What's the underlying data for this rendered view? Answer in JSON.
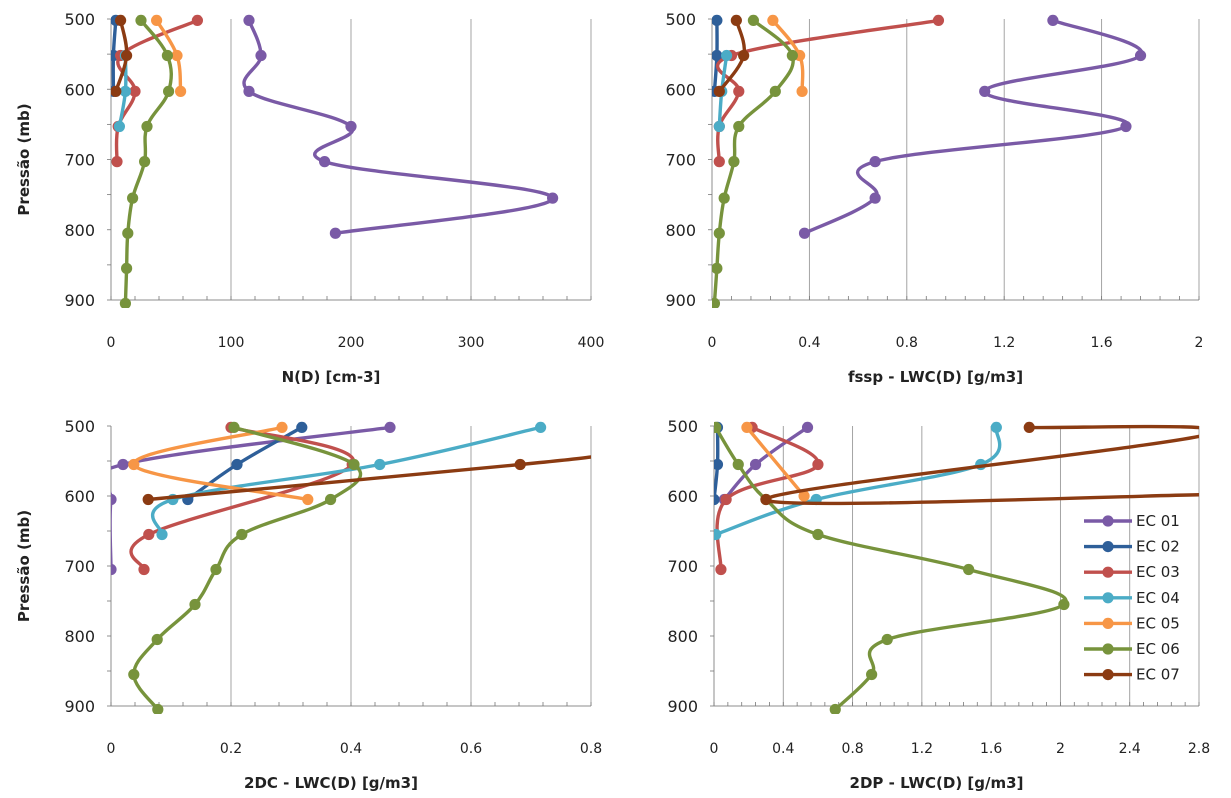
{
  "chart_data": [
    {
      "type": "line",
      "panel": "top-left",
      "xlabel": "N(D) [cm-3]",
      "ylabel": "Pressão (mb)",
      "xlim": [
        0,
        400
      ],
      "ylim": [
        900,
        500
      ],
      "y_inverted": true,
      "xticks": [
        0,
        100,
        200,
        300,
        400
      ],
      "xtick_labels": [
        "0",
        "100",
        "200",
        "300",
        "400"
      ],
      "yticks": [
        500,
        600,
        700,
        800,
        900
      ],
      "grid": "vertical",
      "series": [
        {
          "name": "EC 01",
          "color": "#7a5aa6",
          "points": [
            [
              115,
              502
            ],
            [
              125,
              552
            ],
            [
              115,
              603
            ],
            [
              200,
              653
            ],
            [
              178,
              703
            ],
            [
              368,
              755
            ],
            [
              187,
              805
            ]
          ]
        },
        {
          "name": "EC 02",
          "color": "#2e5f99",
          "points": [
            [
              4,
              502
            ],
            [
              2,
              552
            ],
            [
              2,
              603
            ]
          ]
        },
        {
          "name": "EC 03",
          "color": "#c0504d",
          "points": [
            [
              72,
              502
            ],
            [
              8,
              552
            ],
            [
              20,
              603
            ],
            [
              6,
              653
            ],
            [
              5,
              703
            ]
          ]
        },
        {
          "name": "EC 04",
          "color": "#4bacc6",
          "points": [
            [
              12,
              552
            ],
            [
              12,
              603
            ],
            [
              7,
              653
            ]
          ]
        },
        {
          "name": "EC 05",
          "color": "#f79646",
          "points": [
            [
              38,
              502
            ],
            [
              55,
              552
            ],
            [
              58,
              603
            ]
          ]
        },
        {
          "name": "EC 06",
          "color": "#77933c",
          "points": [
            [
              25,
              502
            ],
            [
              47,
              552
            ],
            [
              48,
              603
            ],
            [
              30,
              653
            ],
            [
              28,
              703
            ],
            [
              18,
              755
            ],
            [
              14,
              805
            ],
            [
              13,
              855
            ],
            [
              12,
              905
            ]
          ]
        },
        {
          "name": "EC 07",
          "color": "#8b3b12",
          "points": [
            [
              8,
              502
            ],
            [
              13,
              552
            ],
            [
              4,
              603
            ]
          ]
        }
      ]
    },
    {
      "type": "line",
      "panel": "top-right",
      "xlabel": "fssp - LWC(D) [g/m3]",
      "ylabel": "",
      "xlim": [
        0,
        2
      ],
      "ylim": [
        900,
        500
      ],
      "y_inverted": true,
      "xticks": [
        0,
        0.4,
        0.8,
        1.2,
        1.6,
        2
      ],
      "xtick_labels": [
        "0",
        "0.4",
        "0.8",
        "1.2",
        "1.6",
        "2"
      ],
      "yticks": [
        500,
        600,
        700,
        800,
        900
      ],
      "grid": "vertical",
      "series": [
        {
          "name": "EC 01",
          "color": "#7a5aa6",
          "points": [
            [
              1.4,
              502
            ],
            [
              1.76,
              552
            ],
            [
              1.12,
              603
            ],
            [
              1.7,
              653
            ],
            [
              0.67,
              703
            ],
            [
              0.67,
              755
            ],
            [
              0.38,
              805
            ]
          ]
        },
        {
          "name": "EC 02",
          "color": "#2e5f99",
          "points": [
            [
              0.02,
              502
            ],
            [
              0.02,
              552
            ],
            [
              0.01,
              603
            ]
          ]
        },
        {
          "name": "EC 03",
          "color": "#c0504d",
          "points": [
            [
              0.93,
              502
            ],
            [
              0.08,
              552
            ],
            [
              0.11,
              603
            ],
            [
              0.03,
              653
            ],
            [
              0.03,
              703
            ]
          ]
        },
        {
          "name": "EC 04",
          "color": "#4bacc6",
          "points": [
            [
              0.06,
              552
            ],
            [
              0.04,
              603
            ],
            [
              0.03,
              653
            ]
          ]
        },
        {
          "name": "EC 05",
          "color": "#f79646",
          "points": [
            [
              0.25,
              502
            ],
            [
              0.36,
              552
            ],
            [
              0.37,
              603
            ]
          ]
        },
        {
          "name": "EC 06",
          "color": "#77933c",
          "points": [
            [
              0.17,
              502
            ],
            [
              0.33,
              552
            ],
            [
              0.26,
              603
            ],
            [
              0.11,
              653
            ],
            [
              0.09,
              703
            ],
            [
              0.05,
              755
            ],
            [
              0.03,
              805
            ],
            [
              0.02,
              855
            ],
            [
              0.01,
              905
            ]
          ]
        },
        {
          "name": "EC 07",
          "color": "#8b3b12",
          "points": [
            [
              0.1,
              502
            ],
            [
              0.13,
              552
            ],
            [
              0.03,
              603
            ]
          ]
        }
      ]
    },
    {
      "type": "line",
      "panel": "bottom-left",
      "xlabel": "2DC - LWC(D) [g/m3]",
      "ylabel": "Pressão (mb)",
      "xlim": [
        0,
        0.8
      ],
      "ylim": [
        900,
        500
      ],
      "y_inverted": true,
      "xticks": [
        0,
        0.2,
        0.4,
        0.6,
        0.8
      ],
      "xtick_labels": [
        "0",
        "0.2",
        "0.4",
        "0.6",
        "0.8"
      ],
      "yticks": [
        500,
        600,
        700,
        800,
        900
      ],
      "grid": "vertical",
      "series": [
        {
          "name": "EC 01",
          "color": "#7a5aa6",
          "points": [
            [
              0.465,
              502
            ],
            [
              0.02,
              555
            ],
            [
              0.0,
              605
            ],
            [
              0.0,
              705
            ]
          ]
        },
        {
          "name": "EC 02",
          "color": "#2e5f99",
          "points": [
            [
              0.318,
              502
            ],
            [
              0.21,
              555
            ],
            [
              0.128,
              605
            ]
          ]
        },
        {
          "name": "EC 03",
          "color": "#c0504d",
          "points": [
            [
              0.2,
              502
            ],
            [
              0.402,
              555
            ],
            [
              0.063,
              655
            ],
            [
              0.055,
              705
            ]
          ]
        },
        {
          "name": "EC 04",
          "color": "#4bacc6",
          "points": [
            [
              0.716,
              502
            ],
            [
              0.448,
              555
            ],
            [
              0.103,
              605
            ],
            [
              0.085,
              655
            ]
          ]
        },
        {
          "name": "EC 05",
          "color": "#f79646",
          "points": [
            [
              0.285,
              502
            ],
            [
              0.038,
              555
            ],
            [
              0.328,
              605
            ]
          ]
        },
        {
          "name": "EC 06",
          "color": "#77933c",
          "points": [
            [
              0.205,
              502
            ],
            [
              0.405,
              555
            ],
            [
              0.366,
              605
            ],
            [
              0.218,
              655
            ],
            [
              0.175,
              705
            ],
            [
              0.14,
              755
            ],
            [
              0.077,
              805
            ],
            [
              0.038,
              855
            ],
            [
              0.078,
              905
            ]
          ]
        },
        {
          "name": "EC 07",
          "color": "#8b3b12",
          "points": [
            [
              0.062,
              605
            ],
            [
              0.682,
              555
            ],
            [
              0.82,
              542
            ]
          ]
        }
      ]
    },
    {
      "type": "line",
      "panel": "bottom-right",
      "xlabel": "2DP - LWC(D) [g/m3]",
      "ylabel": "",
      "xlim": [
        0,
        2.8
      ],
      "ylim": [
        900,
        500
      ],
      "y_inverted": true,
      "xticks": [
        0,
        0.4,
        0.8,
        1.2,
        1.6,
        2,
        2.4,
        2.8
      ],
      "xtick_labels": [
        "0",
        "0.4",
        "0.8",
        "1.2",
        "1.6",
        "2",
        "2.4",
        "2.8"
      ],
      "yticks": [
        500,
        600,
        700,
        800,
        900
      ],
      "grid": "vertical",
      "legend": "right",
      "series": [
        {
          "name": "EC 01",
          "color": "#7a5aa6",
          "points": [
            [
              0.54,
              502
            ],
            [
              0.24,
              555
            ],
            [
              0.06,
              605
            ]
          ]
        },
        {
          "name": "EC 02",
          "color": "#2e5f99",
          "points": [
            [
              0.02,
              502
            ],
            [
              0.02,
              555
            ],
            [
              0.0,
              605
            ]
          ]
        },
        {
          "name": "EC 03",
          "color": "#c0504d",
          "points": [
            [
              0.22,
              502
            ],
            [
              0.6,
              555
            ],
            [
              0.07,
              605
            ],
            [
              0.04,
              705
            ]
          ]
        },
        {
          "name": "EC 04",
          "color": "#4bacc6",
          "points": [
            [
              1.63,
              502
            ],
            [
              1.54,
              555
            ],
            [
              0.59,
              605
            ],
            [
              0.01,
              655
            ]
          ]
        },
        {
          "name": "EC 05",
          "color": "#f79646",
          "points": [
            [
              0.19,
              502
            ],
            [
              0.52,
              600
            ]
          ]
        },
        {
          "name": "EC 06",
          "color": "#77933c",
          "points": [
            [
              0.01,
              502
            ],
            [
              0.14,
              555
            ],
            [
              0.3,
              605
            ],
            [
              0.6,
              655
            ],
            [
              1.47,
              705
            ],
            [
              2.02,
              755
            ],
            [
              1.0,
              805
            ],
            [
              0.91,
              855
            ],
            [
              0.7,
              905
            ]
          ]
        },
        {
          "name": "EC 07",
          "color": "#8b3b12",
          "points": [
            [
              1.82,
              502
            ],
            [
              2.85,
              512
            ],
            [
              0.3,
              605
            ],
            [
              2.85,
              598
            ]
          ]
        }
      ]
    }
  ]
}
